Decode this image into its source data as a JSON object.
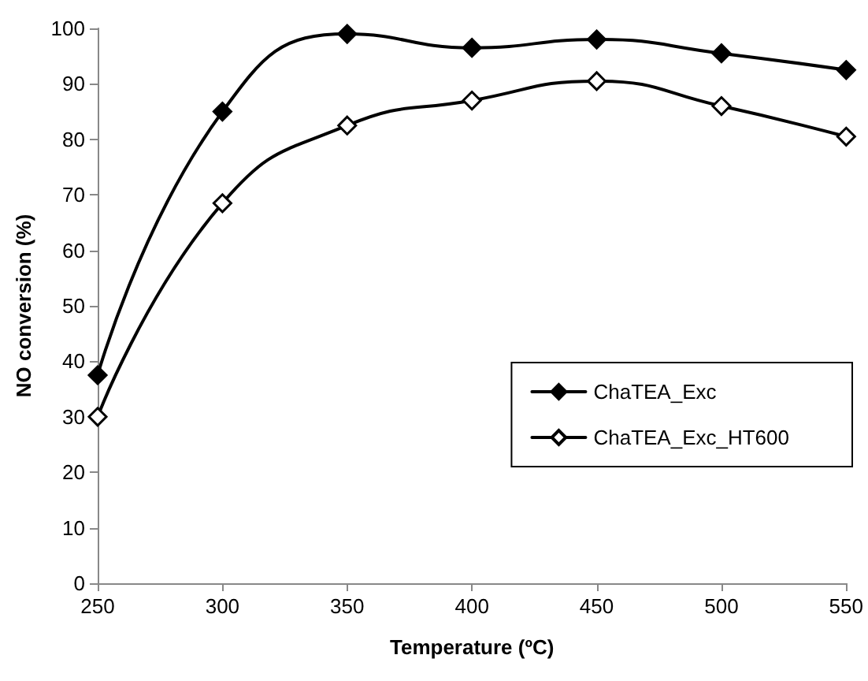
{
  "chart_data": {
    "type": "line",
    "xlabel": "Temperature (ºC)",
    "ylabel": "NO conversion (%)",
    "x": [
      250,
      300,
      350,
      400,
      450,
      500,
      550
    ],
    "series": [
      {
        "name": "ChaTEA_Exc",
        "color": "#000000",
        "values": [
          37.5,
          85,
          99,
          96.5,
          98,
          95.5,
          92.5
        ]
      },
      {
        "name": "ChaTEA_Exc_HT600",
        "color": "#000000",
        "values": [
          30,
          68.5,
          82.5,
          87,
          90.5,
          86,
          80.5
        ]
      }
    ],
    "xlim": [
      250,
      550
    ],
    "xticks": [
      250,
      300,
      350,
      400,
      450,
      500,
      550
    ],
    "ylim": [
      0,
      100
    ],
    "yticks": [
      0,
      10,
      20,
      30,
      40,
      50,
      60,
      70,
      80,
      90,
      100
    ],
    "grid": false,
    "legend": "right",
    "marker": "diamond",
    "line_style": "solid"
  }
}
